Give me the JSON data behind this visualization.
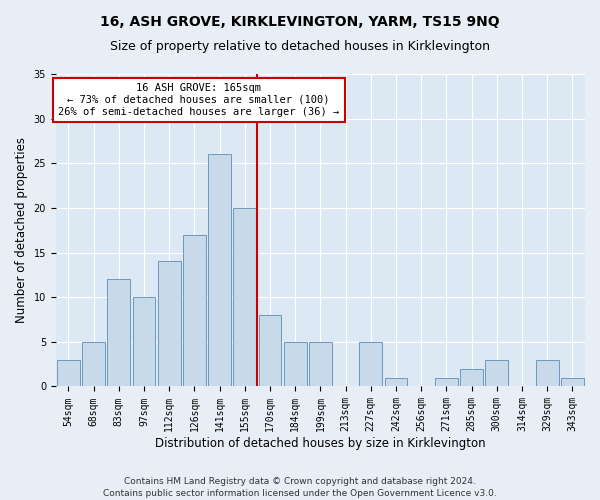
{
  "title": "16, ASH GROVE, KIRKLEVINGTON, YARM, TS15 9NQ",
  "subtitle": "Size of property relative to detached houses in Kirklevington",
  "xlabel": "Distribution of detached houses by size in Kirklevington",
  "ylabel": "Number of detached properties",
  "categories": [
    "54sqm",
    "68sqm",
    "83sqm",
    "97sqm",
    "112sqm",
    "126sqm",
    "141sqm",
    "155sqm",
    "170sqm",
    "184sqm",
    "199sqm",
    "213sqm",
    "227sqm",
    "242sqm",
    "256sqm",
    "271sqm",
    "285sqm",
    "300sqm",
    "314sqm",
    "329sqm",
    "343sqm"
  ],
  "values": [
    3,
    5,
    12,
    10,
    14,
    17,
    26,
    20,
    8,
    5,
    5,
    0,
    5,
    1,
    0,
    1,
    2,
    3,
    0,
    3,
    1
  ],
  "bar_color": "#c8d9ea",
  "bar_edge_color": "#5b8db8",
  "marker_label": "16 ASH GROVE: 165sqm",
  "annotation_line1": "← 73% of detached houses are smaller (100)",
  "annotation_line2": "26% of semi-detached houses are larger (36) →",
  "annotation_box_color": "#ffffff",
  "annotation_box_edge": "#cc0000",
  "vline_color": "#cc0000",
  "ylim": [
    0,
    35
  ],
  "yticks": [
    0,
    5,
    10,
    15,
    20,
    25,
    30,
    35
  ],
  "footer1": "Contains HM Land Registry data © Crown copyright and database right 2024.",
  "footer2": "Contains public sector information licensed under the Open Government Licence v3.0.",
  "bg_color": "#e8eef5",
  "plot_bg_color": "#dce8f4",
  "grid_color": "#ffffff",
  "title_fontsize": 10,
  "subtitle_fontsize": 9,
  "xlabel_fontsize": 8.5,
  "ylabel_fontsize": 8.5,
  "tick_fontsize": 7,
  "annotation_fontsize": 7.5,
  "footer_fontsize": 6.5
}
